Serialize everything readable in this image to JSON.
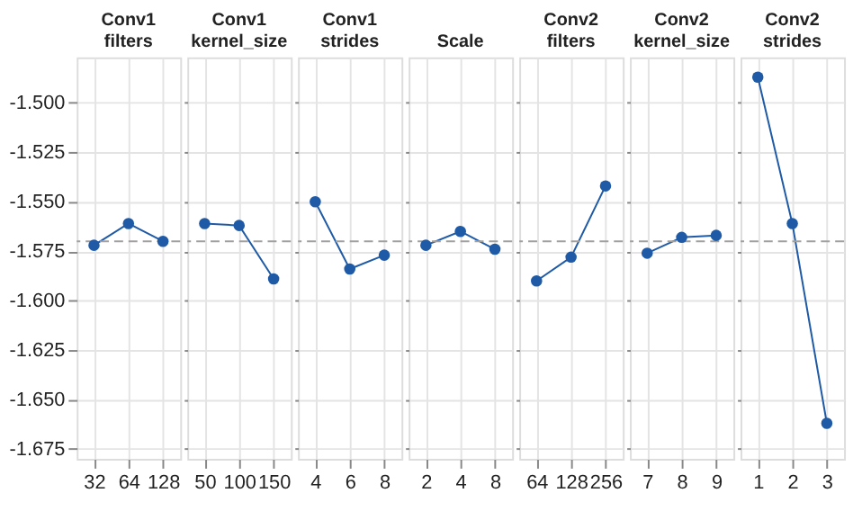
{
  "chart_data": [
    {
      "type": "line",
      "title": "Conv1 filters",
      "categories": [
        "32",
        "64",
        "128"
      ],
      "values": [
        -1.572,
        -1.561,
        -1.57
      ],
      "color": "#1f5aa6",
      "marker": "circle",
      "line_style": "solid",
      "ylim": [
        -1.68,
        -1.477
      ],
      "yticks": [
        {
          "value": -1.5,
          "label": "-1.500"
        },
        -1.525,
        {
          "value": -1.55,
          "label": "-1.550"
        },
        -1.575,
        {
          "value": -1.6,
          "label": "-1.600"
        },
        -1.625,
        {
          "value": -1.65,
          "label": "-1.650"
        },
        -1.675
      ],
      "grid": true,
      "ref_lines": [
        {
          "axis": "y",
          "value": -1.57,
          "color": "#a0a0a0",
          "line_style": "dashed"
        }
      ]
    },
    {
      "type": "line",
      "title": "Conv1 kernel_size",
      "categories": [
        "50",
        "100",
        "150"
      ],
      "values": [
        -1.561,
        -1.562,
        -1.589
      ],
      "color": "#1f5aa6",
      "marker": "circle",
      "line_style": "solid",
      "ylim": [
        -1.68,
        -1.477
      ],
      "yticks": [
        -1.5,
        -1.525,
        -1.55,
        -1.575,
        -1.6,
        -1.625,
        -1.65,
        -1.675
      ],
      "grid": true,
      "tick_labels": "x",
      "ref_lines": [
        {
          "axis": "y",
          "value": -1.57,
          "color": "#a0a0a0",
          "line_style": "dashed"
        }
      ]
    },
    {
      "type": "line",
      "title": "Conv1 strides",
      "categories": [
        "4",
        "6",
        "8"
      ],
      "values": [
        -1.55,
        -1.584,
        -1.577
      ],
      "color": "#1f5aa6",
      "marker": "circle",
      "line_style": "solid",
      "ylim": [
        -1.68,
        -1.477
      ],
      "yticks": [
        -1.5,
        -1.525,
        -1.55,
        -1.575,
        -1.6,
        -1.625,
        -1.65,
        -1.675
      ],
      "grid": true,
      "tick_labels": "x",
      "ref_lines": [
        {
          "axis": "y",
          "value": -1.57,
          "color": "#a0a0a0",
          "line_style": "dashed"
        }
      ]
    },
    {
      "type": "line",
      "title": "Scale",
      "categories": [
        "2",
        "4",
        "8"
      ],
      "values": [
        -1.572,
        -1.565,
        -1.574
      ],
      "color": "#1f5aa6",
      "marker": "circle",
      "line_style": "solid",
      "ylim": [
        -1.68,
        -1.477
      ],
      "yticks": [
        -1.5,
        -1.525,
        -1.55,
        -1.575,
        -1.6,
        -1.625,
        -1.65,
        -1.675
      ],
      "grid": true,
      "tick_labels": "x",
      "ref_lines": [
        {
          "axis": "y",
          "value": -1.57,
          "color": "#a0a0a0",
          "line_style": "dashed"
        }
      ]
    },
    {
      "type": "line",
      "title": "Conv2 filters",
      "categories": [
        "64",
        "128",
        "256"
      ],
      "values": [
        -1.59,
        -1.578,
        -1.542
      ],
      "color": "#1f5aa6",
      "marker": "circle",
      "line_style": "solid",
      "ylim": [
        -1.68,
        -1.477
      ],
      "yticks": [
        -1.5,
        -1.525,
        -1.55,
        -1.575,
        -1.6,
        -1.625,
        -1.65,
        -1.675
      ],
      "grid": true,
      "tick_labels": "x",
      "ref_lines": [
        {
          "axis": "y",
          "value": -1.57,
          "color": "#a0a0a0",
          "line_style": "dashed"
        }
      ]
    },
    {
      "type": "line",
      "title": "Conv2 kernel_size",
      "categories": [
        "7",
        "8",
        "9"
      ],
      "values": [
        -1.576,
        -1.568,
        -1.567
      ],
      "color": "#1f5aa6",
      "marker": "circle",
      "line_style": "solid",
      "ylim": [
        -1.68,
        -1.477
      ],
      "yticks": [
        -1.5,
        -1.525,
        -1.55,
        -1.575,
        -1.6,
        -1.625,
        -1.65,
        -1.675
      ],
      "grid": true,
      "tick_labels": "x",
      "ref_lines": [
        {
          "axis": "y",
          "value": -1.57,
          "color": "#a0a0a0",
          "line_style": "dashed"
        }
      ]
    },
    {
      "type": "line",
      "title": "Conv2 strides",
      "categories": [
        "1",
        "2",
        "3"
      ],
      "values": [
        -1.487,
        -1.561,
        -1.662
      ],
      "color": "#1f5aa6",
      "marker": "circle",
      "line_style": "solid",
      "ylim": [
        -1.68,
        -1.477
      ],
      "yticks": [
        -1.5,
        -1.525,
        -1.55,
        -1.575,
        -1.6,
        -1.625,
        -1.65,
        -1.675
      ],
      "grid": true,
      "tick_labels": "x",
      "ref_lines": [
        {
          "axis": "y",
          "value": -1.57,
          "color": "#a0a0a0",
          "line_style": "dashed"
        }
      ]
    }
  ]
}
